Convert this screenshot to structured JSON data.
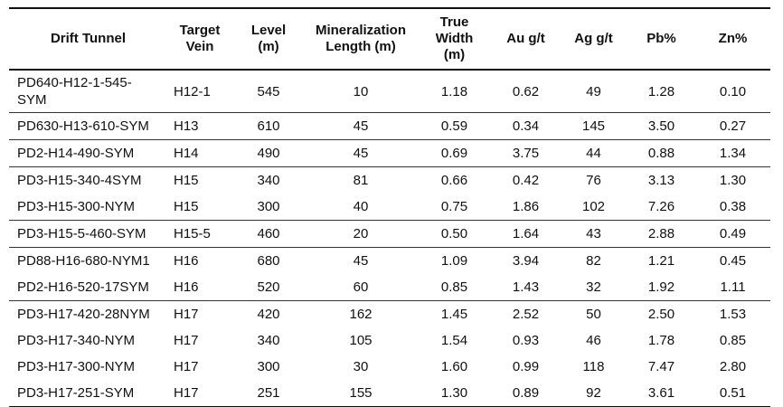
{
  "table": {
    "header_labels": [
      "Drift Tunnel",
      "Target\nVein",
      "Level\n(m)",
      "Mineralization\nLength (m)",
      "True\nWidth\n(m)",
      "Au g/t",
      "Ag g/t",
      "Pb%",
      "Zn%"
    ],
    "column_ids": [
      "drift-tunnel",
      "target-vein",
      "level-m",
      "mineralization-length-m",
      "true-width-m",
      "au-gpt",
      "ag-gpt",
      "pb-pct",
      "zn-pct"
    ],
    "column_alignments": [
      "left",
      "left",
      "center",
      "center",
      "center",
      "center",
      "center",
      "center",
      "center"
    ],
    "rows": [
      {
        "cells": [
          "PD640-H12-1-545-SYM",
          "H12-1",
          "545",
          "10",
          "1.18",
          "0.62",
          "49",
          "1.28",
          "0.10"
        ],
        "rule_below": true
      },
      {
        "cells": [
          "PD630-H13-610-SYM",
          "H13",
          "610",
          "45",
          "0.59",
          "0.34",
          "145",
          "3.50",
          "0.27"
        ],
        "rule_below": true
      },
      {
        "cells": [
          "PD2-H14-490-SYM",
          "H14",
          "490",
          "45",
          "0.69",
          "3.75",
          "44",
          "0.88",
          "1.34"
        ],
        "rule_below": true
      },
      {
        "cells": [
          "PD3-H15-340-4SYM",
          "H15",
          "340",
          "81",
          "0.66",
          "0.42",
          "76",
          "3.13",
          "1.30"
        ],
        "rule_below": false
      },
      {
        "cells": [
          "PD3-H15-300-NYM",
          "H15",
          "300",
          "40",
          "0.75",
          "1.86",
          "102",
          "7.26",
          "0.38"
        ],
        "rule_below": true
      },
      {
        "cells": [
          "PD3-H15-5-460-SYM",
          "H15-5",
          "460",
          "20",
          "0.50",
          "1.64",
          "43",
          "2.88",
          "0.49"
        ],
        "rule_below": true
      },
      {
        "cells": [
          "PD88-H16-680-NYM1",
          "H16",
          "680",
          "45",
          "1.09",
          "3.94",
          "82",
          "1.21",
          "0.45"
        ],
        "rule_below": false
      },
      {
        "cells": [
          "PD2-H16-520-17SYM",
          "H16",
          "520",
          "60",
          "0.85",
          "1.43",
          "32",
          "1.92",
          "1.11"
        ],
        "rule_below": true
      },
      {
        "cells": [
          "PD3-H17-420-28NYM",
          "H17",
          "420",
          "162",
          "1.45",
          "2.52",
          "50",
          "2.50",
          "1.53"
        ],
        "rule_below": false
      },
      {
        "cells": [
          "PD3-H17-340-NYM",
          "H17",
          "340",
          "105",
          "1.54",
          "0.93",
          "46",
          "1.78",
          "0.85"
        ],
        "rule_below": false
      },
      {
        "cells": [
          "PD3-H17-300-NYM",
          "H17",
          "300",
          "30",
          "1.60",
          "0.99",
          "118",
          "7.47",
          "2.80"
        ],
        "rule_below": false
      },
      {
        "cells": [
          "PD3-H17-251-SYM",
          "H17",
          "251",
          "155",
          "1.30",
          "0.89",
          "92",
          "3.61",
          "0.51"
        ],
        "rule_below": false
      }
    ]
  },
  "colors": {
    "text": "#111111",
    "border_heavy": "#111111",
    "border_light": "#333333",
    "background": "#ffffff"
  }
}
